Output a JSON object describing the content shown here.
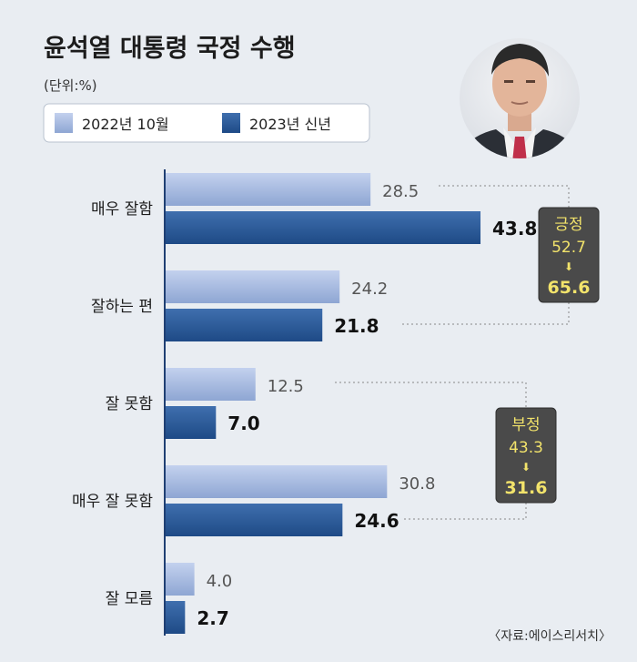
{
  "chart_data": {
    "type": "bar",
    "orientation": "horizontal",
    "title": "윤석열 대통령 국정 수행",
    "unit_label": "(단위:%)",
    "categories": [
      "매우 잘함",
      "잘하는 편",
      "잘 못함",
      "매우 잘 못함",
      "잘 모름"
    ],
    "series": [
      {
        "name": "2022년 10월",
        "values": [
          28.5,
          24.2,
          12.5,
          30.8,
          4.0
        ],
        "color": "#9db3dd"
      },
      {
        "name": "2023년 신년",
        "values": [
          43.8,
          21.8,
          7.0,
          24.6,
          2.7
        ],
        "color": "#2a5a97"
      }
    ],
    "value_labels": [
      [
        "28.5",
        "24.2",
        "12.5",
        "30.8",
        "4.0"
      ],
      [
        "43.8",
        "21.8",
        "7.0",
        "24.6",
        "2.7"
      ]
    ],
    "xlim": [
      0,
      50
    ],
    "legend_position": "top-left",
    "grid": false,
    "summaries": [
      {
        "label": "긍정",
        "before": "52.7",
        "after": "65.6",
        "arrow": "⬇"
      },
      {
        "label": "부정",
        "before": "43.3",
        "after": "31.6",
        "arrow": "⬇"
      }
    ],
    "source": "〈자료:에이스리서치〉"
  },
  "colors": {
    "background": "#e9edf2",
    "axis": "#1f3f73",
    "old_series": "#9db3dd",
    "new_series": "#2a5a97",
    "box": "#4a4a4a",
    "box_text": "#f2e36b"
  },
  "photo": {
    "icon": "person-portrait-icon"
  }
}
